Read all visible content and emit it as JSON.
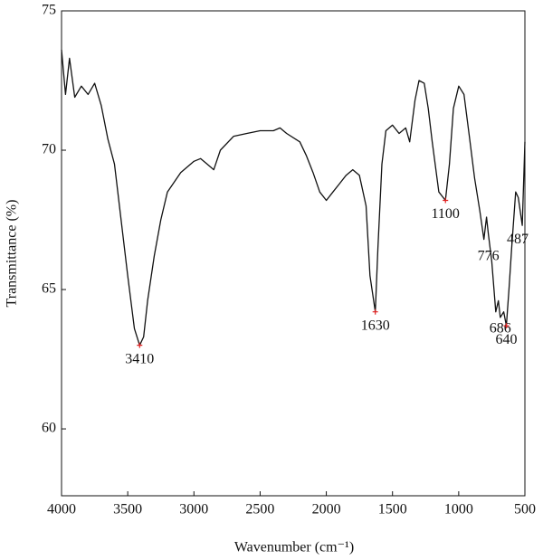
{
  "chart_data": {
    "type": "line",
    "x_label": "Wavenumber (cm⁻¹)",
    "y_label": "Transmittance (%)",
    "xlim": [
      4000,
      500
    ],
    "ylim": [
      57.6,
      75
    ],
    "xticks": [
      4000,
      3500,
      3000,
      2500,
      2000,
      1500,
      1000,
      500
    ],
    "yticks": [
      60,
      65,
      70,
      75
    ],
    "series": [
      {
        "color": "#111111",
        "x": [
          4000,
          3970,
          3940,
          3900,
          3850,
          3800,
          3750,
          3700,
          3650,
          3600,
          3550,
          3500,
          3450,
          3410,
          3380,
          3350,
          3300,
          3250,
          3200,
          3100,
          3000,
          2950,
          2900,
          2850,
          2800,
          2700,
          2600,
          2500,
          2400,
          2350,
          2300,
          2200,
          2150,
          2100,
          2050,
          2000,
          1950,
          1900,
          1850,
          1800,
          1750,
          1700,
          1670,
          1630,
          1610,
          1580,
          1550,
          1500,
          1450,
          1400,
          1370,
          1330,
          1300,
          1260,
          1230,
          1200,
          1150,
          1100,
          1070,
          1040,
          1000,
          960,
          920,
          880,
          840,
          810,
          790,
          776,
          750,
          720,
          700,
          686,
          660,
          640,
          620,
          600,
          570,
          550,
          520,
          500
        ],
        "values": [
          73.6,
          72.0,
          73.3,
          71.9,
          72.3,
          72.0,
          72.4,
          71.6,
          70.4,
          69.5,
          67.5,
          65.5,
          63.6,
          63.0,
          63.3,
          64.6,
          66.2,
          67.5,
          68.5,
          69.2,
          69.6,
          69.7,
          69.5,
          69.3,
          70.0,
          70.5,
          70.6,
          70.7,
          70.7,
          70.8,
          70.6,
          70.3,
          69.8,
          69.2,
          68.5,
          68.2,
          68.5,
          68.8,
          69.1,
          69.3,
          69.1,
          68.0,
          65.5,
          64.2,
          66.5,
          69.5,
          70.7,
          70.9,
          70.6,
          70.8,
          70.3,
          71.8,
          72.5,
          72.4,
          71.5,
          70.3,
          68.5,
          68.2,
          69.5,
          71.5,
          72.3,
          72.0,
          70.5,
          69.0,
          67.8,
          66.8,
          67.6,
          67.0,
          66.0,
          64.2,
          64.6,
          64.0,
          64.2,
          63.7,
          65.0,
          66.5,
          68.5,
          68.3,
          67.3,
          70.3
        ]
      }
    ],
    "annotations": [
      {
        "label": "3410",
        "x": 3410,
        "y": 63.0,
        "marker": true
      },
      {
        "label": "1630",
        "x": 1630,
        "y": 64.2,
        "marker": true
      },
      {
        "label": "1100",
        "x": 1100,
        "y": 68.2,
        "marker": true
      },
      {
        "label": "776",
        "x": 776,
        "y": 66.7,
        "marker": false
      },
      {
        "label": "686",
        "x": 686,
        "y": 64.1,
        "marker": false
      },
      {
        "label": "640",
        "x": 640,
        "y": 63.7,
        "marker": true
      },
      {
        "label": "487",
        "x": 487,
        "y": 67.3,
        "marker": false
      }
    ],
    "marker_color": "#e02020"
  }
}
